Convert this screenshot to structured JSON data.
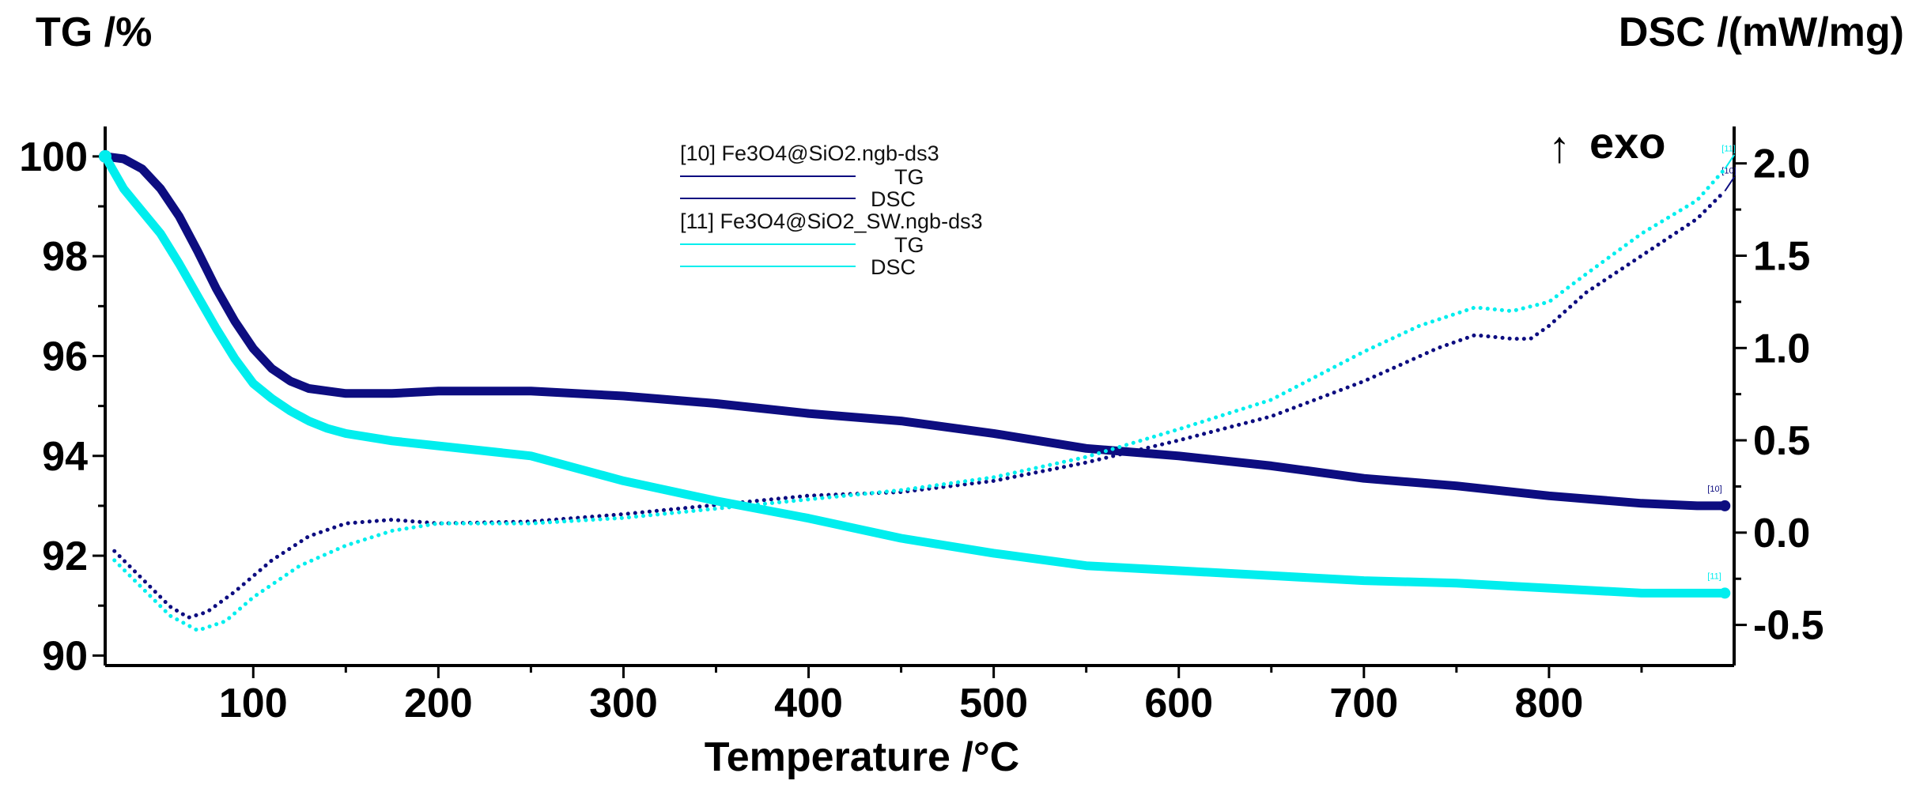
{
  "colors": {
    "sample10": "#0d0d80",
    "sample11": "#00eeee",
    "axis": "#000000",
    "background": "#ffffff"
  },
  "chart_data": {
    "type": "line",
    "xlabel": "Temperature /°C",
    "y_left_label": "TG /%",
    "y_right_label": "DSC /(mW/mg)",
    "exo_arrow": "↑",
    "exo_label": "exo",
    "xlim": [
      20,
      900
    ],
    "ylim_left": [
      89.8,
      100.6
    ],
    "ylim_right": [
      -0.72,
      2.2
    ],
    "x_ticks": [
      100,
      200,
      300,
      400,
      500,
      600,
      700,
      800
    ],
    "y_left_ticks": [
      90,
      92,
      94,
      96,
      98,
      100
    ],
    "y_right_ticks": [
      -0.5,
      0.0,
      0.5,
      1.0,
      1.5,
      2.0
    ],
    "y_right_tick_labels": [
      "-0.5",
      "0.0",
      "0.5",
      "1.0",
      "1.5",
      "2.0"
    ],
    "legend": [
      {
        "title": "[10] Fe3O4@SiO2.ngb-ds3",
        "entries": [
          "TG",
          "DSC"
        ]
      },
      {
        "title": "[11] Fe3O4@SiO2_SW.ngb-ds3",
        "entries": [
          "TG",
          "DSC"
        ]
      }
    ],
    "series": [
      {
        "name": "[10] TG",
        "axis": "left",
        "style": "solid",
        "end_label": "[10]",
        "x": [
          20,
          30,
          40,
          50,
          60,
          70,
          80,
          90,
          100,
          110,
          120,
          130,
          140,
          150,
          175,
          200,
          250,
          300,
          350,
          400,
          450,
          500,
          550,
          600,
          650,
          700,
          750,
          800,
          850,
          880,
          895
        ],
        "y": [
          100.0,
          99.95,
          99.75,
          99.35,
          98.8,
          98.1,
          97.35,
          96.7,
          96.15,
          95.75,
          95.5,
          95.35,
          95.3,
          95.25,
          95.25,
          95.3,
          95.3,
          95.2,
          95.05,
          94.85,
          94.7,
          94.45,
          94.15,
          94.0,
          93.8,
          93.55,
          93.4,
          93.2,
          93.05,
          93.0,
          93.0
        ]
      },
      {
        "name": "[10] DSC",
        "axis": "right",
        "style": "dotted",
        "end_label": "[10]",
        "x": [
          25,
          40,
          55,
          65,
          75,
          90,
          110,
          130,
          150,
          175,
          200,
          250,
          300,
          350,
          400,
          450,
          500,
          550,
          600,
          650,
          700,
          740,
          760,
          780,
          790,
          800,
          820,
          850,
          880,
          895
        ],
        "y": [
          -0.1,
          -0.25,
          -0.4,
          -0.46,
          -0.43,
          -0.32,
          -0.15,
          -0.02,
          0.05,
          0.07,
          0.05,
          0.06,
          0.1,
          0.15,
          0.2,
          0.22,
          0.28,
          0.38,
          0.5,
          0.63,
          0.82,
          1.0,
          1.07,
          1.05,
          1.05,
          1.12,
          1.3,
          1.5,
          1.7,
          1.85
        ]
      },
      {
        "name": "[11] TG",
        "axis": "left",
        "style": "solid",
        "end_label": "[11]",
        "x": [
          20,
          30,
          40,
          50,
          60,
          70,
          80,
          90,
          100,
          110,
          120,
          130,
          140,
          150,
          175,
          200,
          250,
          300,
          350,
          400,
          450,
          500,
          550,
          600,
          650,
          700,
          750,
          800,
          850,
          880,
          895
        ],
        "y": [
          100.0,
          99.35,
          98.9,
          98.45,
          97.85,
          97.2,
          96.55,
          95.95,
          95.45,
          95.15,
          94.9,
          94.7,
          94.55,
          94.45,
          94.3,
          94.2,
          94.0,
          93.5,
          93.1,
          92.75,
          92.35,
          92.05,
          91.8,
          91.7,
          91.6,
          91.5,
          91.45,
          91.35,
          91.25,
          91.25,
          91.25
        ]
      },
      {
        "name": "[11] DSC",
        "axis": "right",
        "style": "dotted",
        "end_label": "[11]",
        "x": [
          25,
          40,
          55,
          70,
          85,
          100,
          125,
          150,
          175,
          200,
          250,
          300,
          350,
          400,
          450,
          500,
          550,
          600,
          650,
          700,
          730,
          760,
          780,
          800,
          820,
          850,
          880,
          895
        ],
        "y": [
          -0.15,
          -0.3,
          -0.45,
          -0.53,
          -0.48,
          -0.35,
          -0.18,
          -0.07,
          0.01,
          0.05,
          0.05,
          0.08,
          0.13,
          0.18,
          0.23,
          0.3,
          0.41,
          0.56,
          0.72,
          0.98,
          1.12,
          1.22,
          1.2,
          1.25,
          1.4,
          1.62,
          1.8,
          1.97
        ]
      }
    ]
  }
}
